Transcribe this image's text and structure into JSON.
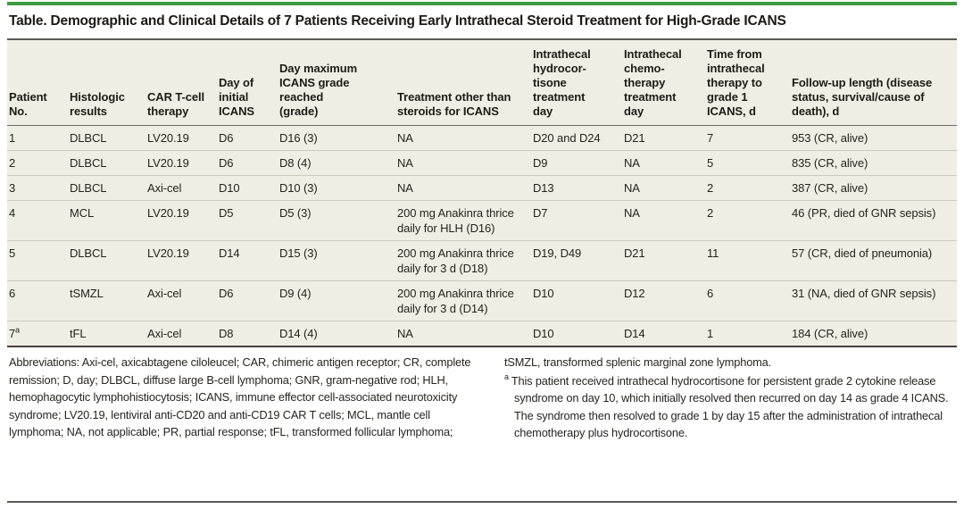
{
  "accent_color": "#3f9b41",
  "title": "Table. Demographic and Clinical Details of 7 Patients Receiving Early Intrathecal Steroid Treatment for High-Grade ICANS",
  "table": {
    "columns": [
      "Patient\nNo.",
      "Histologic\nresults",
      "CAR T-cell\ntherapy",
      "Day of\ninitial\nICANS",
      "Day maximum\nICANS grade\nreached\n(grade)",
      "Treatment other than\nsteroids for ICANS",
      "Intrathecal\nhydrocor-\ntisone\ntreatment\nday",
      "Intrathecal\nchemo-\ntherapy\ntreatment\nday",
      "Time from\nintrathecal\ntherapy to\ngrade 1\nICANS, d",
      "Follow-up length (disease\nstatus, survival/cause of\ndeath), d"
    ],
    "rows": [
      [
        "1",
        "DLBCL",
        "LV20.19",
        "D6",
        "D16 (3)",
        "NA",
        "D20 and D24",
        "D21",
        "7",
        "953 (CR, alive)"
      ],
      [
        "2",
        "DLBCL",
        "LV20.19",
        "D6",
        "D8 (4)",
        "NA",
        "D9",
        "NA",
        "5",
        "835 (CR, alive)"
      ],
      [
        "3",
        "DLBCL",
        "Axi-cel",
        "D10",
        "D10 (3)",
        "NA",
        "D13",
        "NA",
        "2",
        "387 (CR, alive)"
      ],
      [
        "4",
        "MCL",
        "LV20.19",
        "D5",
        "D5 (3)",
        "200 mg Anakinra thrice daily for HLH (D16)",
        "D7",
        "NA",
        "2",
        "46 (PR, died of GNR sepsis)"
      ],
      [
        "5",
        "DLBCL",
        "LV20.19",
        "D14",
        "D15 (3)",
        "200 mg Anakinra thrice daily for 3 d (D18)",
        "D19, D49",
        "D21",
        "11",
        "57 (CR, died of pneumonia)"
      ],
      [
        "6",
        "tSMZL",
        "Axi-cel",
        "D6",
        "D9 (4)",
        "200 mg Anakinra thrice daily for 3 d (D14)",
        "D10",
        "D12",
        "6",
        "31 (NA, died of GNR sepsis)"
      ],
      [
        "7^a",
        "tFL",
        "Axi-cel",
        "D8",
        "D14 (4)",
        "NA",
        "D10",
        "D14",
        "1",
        "184 (CR, alive)"
      ]
    ]
  },
  "footnotes": {
    "abbreviations": "Abbreviations: Axi-cel, axicabtagene ciloleucel; CAR, chimeric antigen receptor; CR, complete remission; D, day; DLBCL, diffuse large B-cell lymphoma; GNR, gram-negative rod; HLH, hemophagocytic lymphohistiocytosis; ICANS, immune effector cell-associated neurotoxicity syndrome; LV20.19, lentiviral anti-CD20 and anti-CD19 CAR T cells; MCL, mantle cell lymphoma; NA, not applicable; PR, partial response; tFL, transformed follicular lymphoma;",
    "abbreviations_continued": "tSMZL, transformed splenic marginal zone lymphoma.",
    "footnote_a_marker": "a",
    "footnote_a_text": "This patient received intrathecal hydrocortisone for persistent grade 2 cytokine release syndrome on day 10, which initially resolved then recurred on day 14 as grade 4 ICANS. The syndrome then resolved to grade 1 by day 15 after the administration of intrathecal chemotherapy plus hydrocortisone."
  }
}
